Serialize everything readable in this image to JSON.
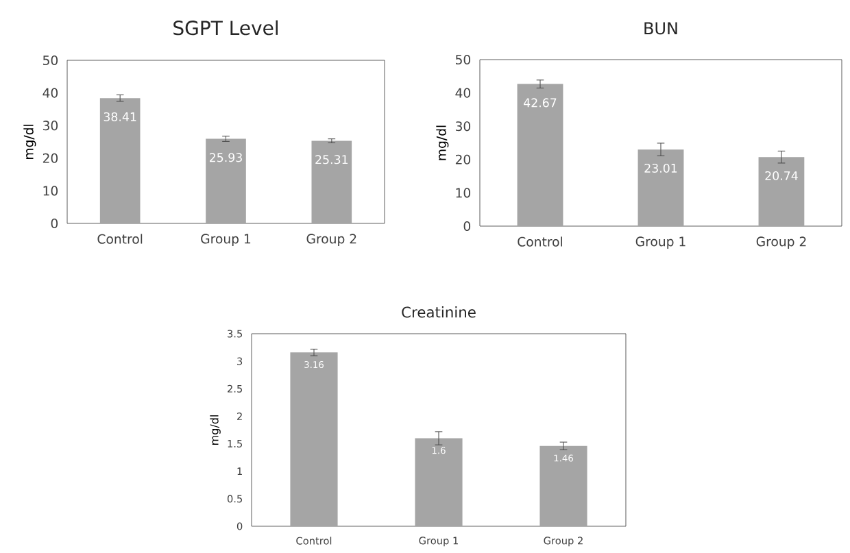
{
  "chart_data": [
    {
      "type": "bar",
      "title": "SGPT Level",
      "ylabel": "mg/dl",
      "categories": [
        "Control",
        "Group 1",
        "Group 2"
      ],
      "values": [
        38.41,
        25.93,
        25.31
      ],
      "errors": [
        1,
        0.8,
        0.6
      ],
      "color": "#a5a5a5",
      "ylim": [
        0,
        50
      ],
      "yticks": [
        0,
        10,
        20,
        30,
        40,
        50
      ],
      "data_labels": true,
      "grid": false
    },
    {
      "type": "bar",
      "title": "BUN",
      "ylabel": "mg/dl",
      "categories": [
        "Control",
        "Group 1",
        "Group 2"
      ],
      "values": [
        42.67,
        23.01,
        20.74
      ],
      "errors": [
        1.2,
        1.9,
        1.8
      ],
      "color": "#a5a5a5",
      "ylim": [
        0,
        50
      ],
      "yticks": [
        0,
        10,
        20,
        30,
        40,
        50
      ],
      "data_labels": true,
      "grid": false
    },
    {
      "type": "bar",
      "title": "Creatinine",
      "ylabel": "mg/dl",
      "categories": [
        "Control",
        "Group 1",
        "Group 2"
      ],
      "values": [
        3.16,
        1.6,
        1.46
      ],
      "errors": [
        0.06,
        0.12,
        0.07
      ],
      "color": "#a5a5a5",
      "ylim": [
        0,
        3.5
      ],
      "yticks": [
        0,
        0.5,
        1,
        1.5,
        2,
        2.5,
        3,
        3.5
      ],
      "data_labels": true,
      "grid": false
    }
  ]
}
